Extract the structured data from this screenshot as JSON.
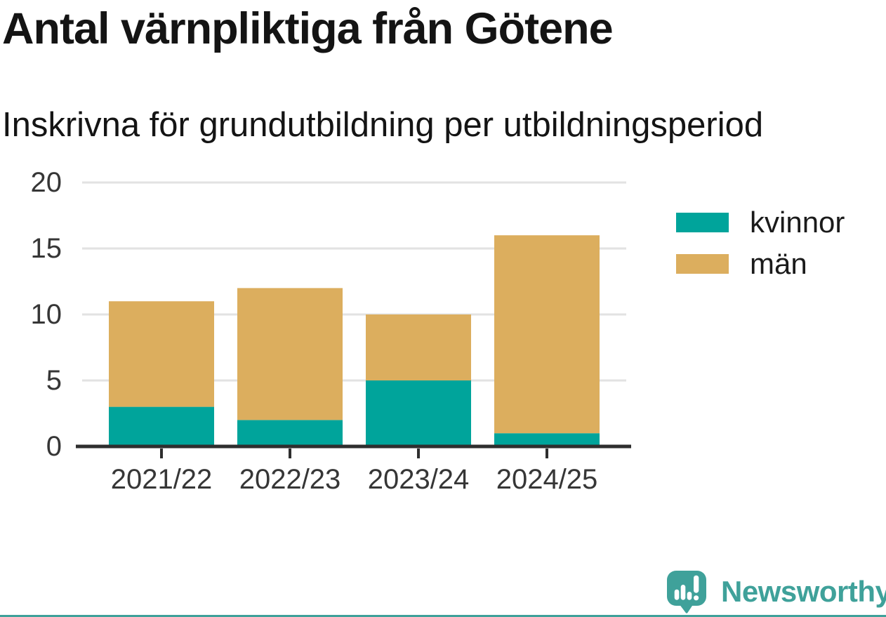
{
  "header": {
    "title": "Antal värnpliktiga från Götene",
    "subtitle": "Inskrivna för grundutbildning per utbildningsperiod"
  },
  "chart_data": {
    "type": "bar",
    "stacked": true,
    "categories": [
      "2021/22",
      "2022/23",
      "2023/24",
      "2024/25"
    ],
    "series": [
      {
        "name": "kvinnor",
        "color": "#00a49b",
        "values": [
          3,
          2,
          5,
          1
        ]
      },
      {
        "name": "män",
        "color": "#dcae5e",
        "values": [
          8,
          10,
          5,
          15
        ]
      }
    ],
    "totals": [
      11,
      12,
      10,
      16
    ],
    "title": "Antal värnpliktiga från Götene",
    "subtitle": "Inskrivna för grundutbildning per utbildningsperiod",
    "xlabel": "",
    "ylabel": "",
    "ylim": [
      0,
      20
    ],
    "yticks": [
      0,
      5,
      10,
      15,
      20
    ],
    "grid": true,
    "legend_position": "right"
  },
  "footer": {
    "brand": "Newsworthy"
  },
  "colors": {
    "kvinnor": "#00a49b",
    "man": "#dcae5e",
    "brand": "#3fa19a",
    "grid": "#e2e2e2",
    "axis": "#2e2e2e",
    "tick_text": "#363636",
    "title_text": "#141414"
  }
}
